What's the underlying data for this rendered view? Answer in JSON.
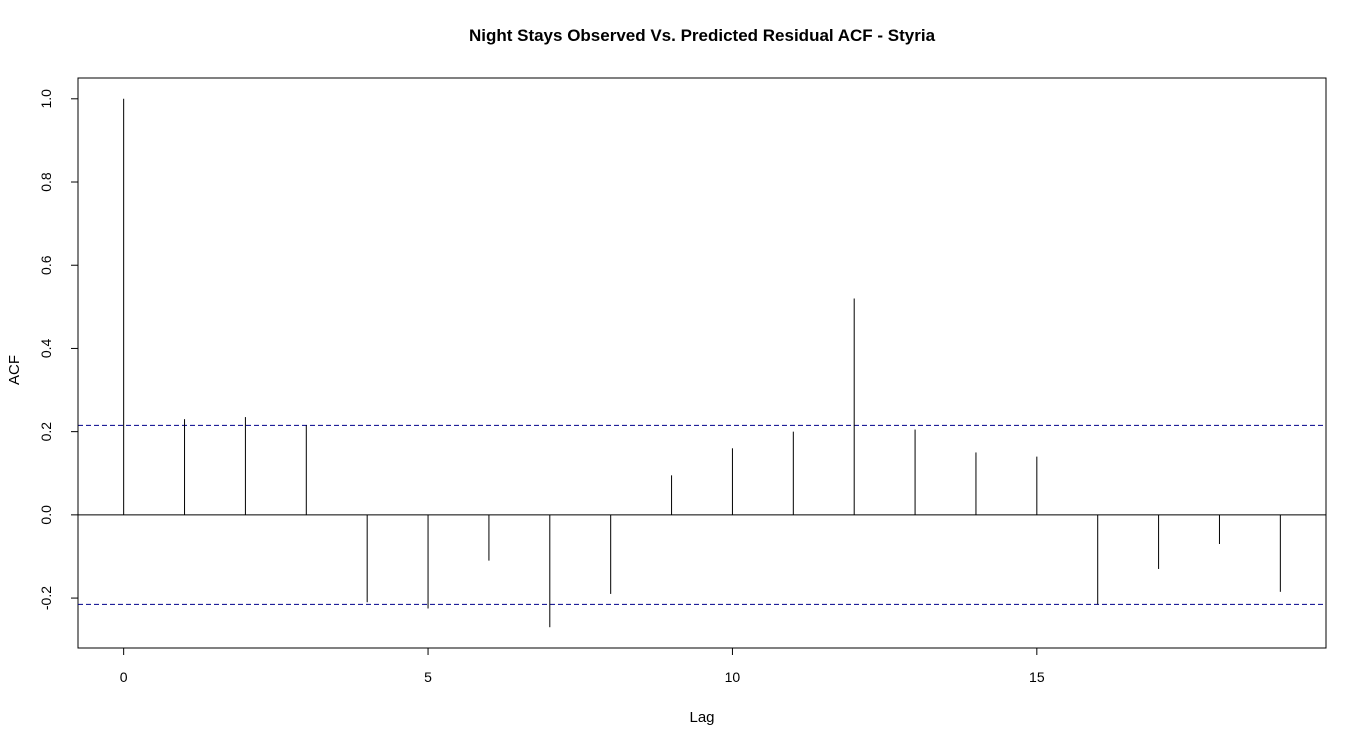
{
  "chart_data": {
    "type": "bar",
    "title": "Night Stays Observed Vs. Predicted Residual ACF - Styria",
    "xlabel": "Lag",
    "ylabel": "ACF",
    "x": [
      0,
      1,
      2,
      3,
      4,
      5,
      6,
      7,
      8,
      9,
      10,
      11,
      12,
      13,
      14,
      15,
      16,
      17,
      18,
      19
    ],
    "values": [
      1.0,
      0.23,
      0.235,
      0.215,
      -0.21,
      -0.225,
      -0.11,
      -0.27,
      -0.19,
      0.095,
      0.16,
      0.2,
      0.52,
      0.205,
      0.15,
      0.14,
      -0.215,
      -0.13,
      -0.07,
      -0.185
    ],
    "confidence_bound": 0.215,
    "xlim": [
      -0.75,
      19.75
    ],
    "ylim": [
      -0.32,
      1.05
    ],
    "x_ticks": [
      0,
      5,
      10,
      15
    ],
    "x_tick_labels": [
      "0",
      "5",
      "10",
      "15"
    ],
    "y_ticks": [
      -0.2,
      0.0,
      0.2,
      0.4,
      0.6,
      0.8,
      1.0
    ],
    "y_tick_labels": [
      "-0.2",
      "0.0",
      "0.2",
      "0.4",
      "0.6",
      "0.8",
      "1.0"
    ],
    "confidence_color": "#00008B",
    "bar_color": "#000000",
    "grid": false
  }
}
